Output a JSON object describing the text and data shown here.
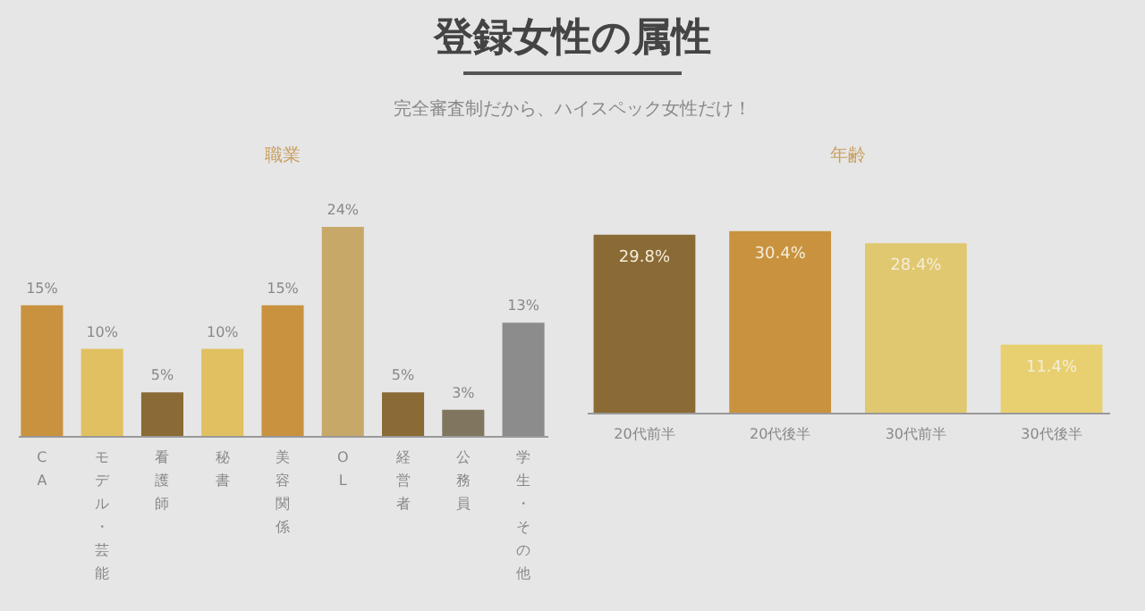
{
  "chart_data": [
    {
      "type": "other",
      "title": "登録女性の属性",
      "subtitle": "完全審査制だから、ハイスペック女性だけ！"
    },
    {
      "type": "bar",
      "title": "職業",
      "categories": [
        "CA",
        "モデル・芸能",
        "看護師",
        "秘書",
        "美容関係",
        "OL",
        "経営者",
        "公務員",
        "学生・その他"
      ],
      "values": [
        15,
        10,
        5,
        10,
        15,
        24,
        5,
        3,
        13
      ],
      "value_labels": [
        "15%",
        "10%",
        "5%",
        "10%",
        "15%",
        "24%",
        "5%",
        "3%",
        "13%"
      ],
      "colors": [
        "#c8923f",
        "#e0c060",
        "#8a6a35",
        "#e0c060",
        "#c8923f",
        "#c8a868",
        "#8a6a35",
        "#807660",
        "#8c8c8c"
      ]
    },
    {
      "type": "bar",
      "title": "年齢",
      "categories": [
        "20代前半",
        "20代後半",
        "30代前半",
        "30代後半"
      ],
      "values": [
        29.8,
        30.4,
        28.4,
        11.4
      ],
      "value_labels": [
        "29.8%",
        "30.4%",
        "28.4%",
        "11.4%"
      ],
      "colors": [
        "#8a6a35",
        "#c8923f",
        "#e0c870",
        "#e8d070"
      ]
    }
  ]
}
